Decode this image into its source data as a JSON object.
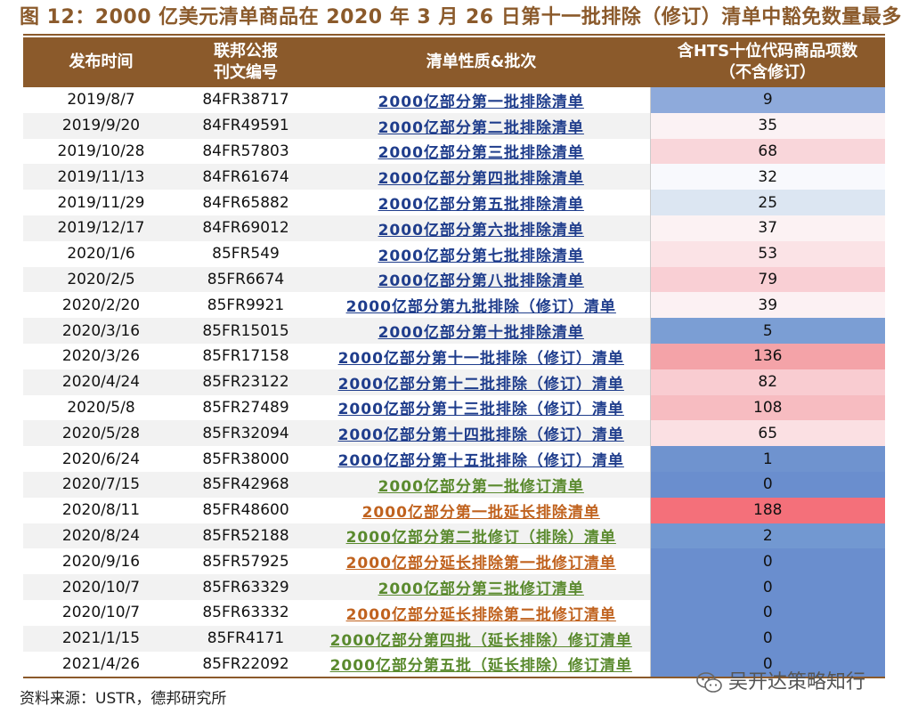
{
  "title": "图 12：2000 亿美元清单商品在 2020 年 3 月 26 日第十一批排除（修订）清单中豁免数量最多",
  "headers": {
    "date": [
      "发布时间"
    ],
    "doc": [
      "联邦公报",
      "刊文编号"
    ],
    "desc": [
      "清单性质&批次"
    ],
    "count": [
      "含HTS十位代码商品项数",
      "（不含修订）"
    ]
  },
  "rows": [
    {
      "date": "2019/8/7",
      "doc": "84FR38717",
      "desc": "2000亿部分第一批排除清单",
      "count": "9",
      "desc_color": "blue",
      "count_color": "#8eaadb"
    },
    {
      "date": "2019/9/20",
      "doc": "84FR49591",
      "desc": "2000亿部分第二批排除清单",
      "count": "35",
      "desc_color": "blue",
      "count_color": "#fbf2f4"
    },
    {
      "date": "2019/10/28",
      "doc": "84FR57803",
      "desc": "2000亿部分第三批排除清单",
      "count": "68",
      "desc_color": "blue",
      "count_color": "#f9d6da"
    },
    {
      "date": "2019/11/13",
      "doc": "84FR61674",
      "desc": "2000亿部分第四批排除清单",
      "count": "32",
      "desc_color": "blue",
      "count_color": "#f8f9fd"
    },
    {
      "date": "2019/11/29",
      "doc": "84FR65882",
      "desc": "2000亿部分第五批排除清单",
      "count": "25",
      "desc_color": "blue",
      "count_color": "#dce6f2"
    },
    {
      "date": "2019/12/17",
      "doc": "84FR69012",
      "desc": "2000亿部分第六批排除清单",
      "count": "37",
      "desc_color": "blue",
      "count_color": "#fcf2f3"
    },
    {
      "date": "2020/1/6",
      "doc": "85FR549",
      "desc": "2000亿部分第七批排除清单",
      "count": "53",
      "desc_color": "blue",
      "count_color": "#fbe3e6"
    },
    {
      "date": "2020/2/5",
      "doc": "85FR6674",
      "desc": "2000亿部分第八批排除清单",
      "count": "79",
      "desc_color": "blue",
      "count_color": "#f9cfd4"
    },
    {
      "date": "2020/2/20",
      "doc": "85FR9921",
      "desc": "2000亿部分第九批排除（修订）清单",
      "count": "39",
      "desc_color": "blue",
      "count_color": "#fcf1f3"
    },
    {
      "date": "2020/3/16",
      "doc": "85FR15015",
      "desc": "2000亿部分第十批排除清单",
      "count": "5",
      "desc_color": "blue",
      "count_color": "#7b9ed4"
    },
    {
      "date": "2020/3/26",
      "doc": "85FR17158",
      "desc": "2000亿部分第十一批排除（修订）清单",
      "count": "136",
      "desc_color": "blue",
      "count_color": "#f4a3a8"
    },
    {
      "date": "2020/4/24",
      "doc": "85FR23122",
      "desc": "2000亿部分第十二批排除（修订）清单",
      "count": "82",
      "desc_color": "blue",
      "count_color": "#f9ccd1"
    },
    {
      "date": "2020/5/8",
      "doc": "85FR27489",
      "desc": "2000亿部分第十三批排除（修订）清单",
      "count": "108",
      "desc_color": "blue",
      "count_color": "#f7bcc1"
    },
    {
      "date": "2020/5/28",
      "doc": "85FR32094",
      "desc": "2000亿部分第十四批排除（修订）清单",
      "count": "65",
      "desc_color": "blue",
      "count_color": "#fbe0e3"
    },
    {
      "date": "2020/6/24",
      "doc": "85FR38000",
      "desc": "2000亿部分第十五批排除（修订）清单",
      "count": "1",
      "desc_color": "blue",
      "count_color": "#6f93cf"
    },
    {
      "date": "2020/7/15",
      "doc": "85FR42968",
      "desc": "2000亿部分第一批修订清单",
      "count": "0",
      "desc_color": "green",
      "count_color": "#6a8ece"
    },
    {
      "date": "2020/8/11",
      "doc": "85FR48600",
      "desc": "2000亿部分第一批延长排除清单",
      "count": "188",
      "desc_color": "orange",
      "count_color": "#f4707a"
    },
    {
      "date": "2020/8/24",
      "doc": "85FR52188",
      "desc": "2000亿部分第二批修订（排除）清单",
      "count": "2",
      "desc_color": "green",
      "count_color": "#7298d1"
    },
    {
      "date": "2020/9/16",
      "doc": "85FR57925",
      "desc": "2000亿部分延长排除第一批修订清单",
      "count": "0",
      "desc_color": "orange",
      "count_color": "#6a8ece"
    },
    {
      "date": "2020/10/7",
      "doc": "85FR63329",
      "desc": "2000亿部分第三批修订清单",
      "count": "0",
      "desc_color": "green",
      "count_color": "#6a8ece"
    },
    {
      "date": "2020/10/7",
      "doc": "85FR63332",
      "desc": "2000亿部分延长排除第二批修订清单",
      "count": "0",
      "desc_color": "orange",
      "count_color": "#6a8ece"
    },
    {
      "date": "2021/1/15",
      "doc": "85FR4171",
      "desc": "2000亿部分第四批（延长排除）修订清单",
      "count": "0",
      "desc_color": "green",
      "count_color": "#6a8ece"
    },
    {
      "date": "2021/4/26",
      "doc": "85FR22092",
      "desc": "2000亿部分第五批（延长排除）修订清单",
      "count": "0",
      "desc_color": "green",
      "count_color": "#6a8ece"
    }
  ],
  "source": "资料来源：USTR，德邦研究所",
  "watermark": "吴开达策略知行",
  "watermark_icon": "wechat-icon",
  "colors": {
    "header_bg": "#8b5a2b",
    "title": "#8b5a2b"
  }
}
